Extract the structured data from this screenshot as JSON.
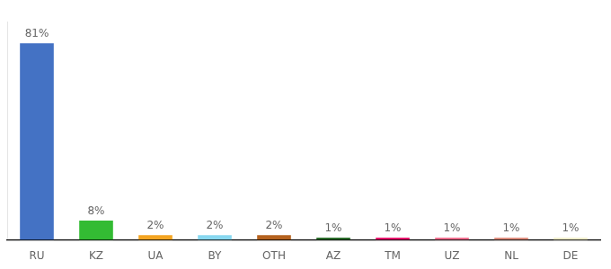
{
  "chart_data": {
    "type": "bar",
    "categories": [
      "RU",
      "KZ",
      "UA",
      "BY",
      "OTH",
      "AZ",
      "TM",
      "UZ",
      "NL",
      "DE"
    ],
    "values": [
      81,
      8,
      2,
      2,
      2,
      1,
      1,
      1,
      1,
      1
    ],
    "value_labels": [
      "81%",
      "8%",
      "2%",
      "2%",
      "2%",
      "1%",
      "1%",
      "1%",
      "1%",
      "1%"
    ],
    "colors": [
      "#4472c4",
      "#33bb33",
      "#f4a522",
      "#88d8f0",
      "#b5621e",
      "#2d6e2d",
      "#e8186e",
      "#f07090",
      "#e09080",
      "#f0eecc"
    ],
    "ylim": [
      0,
      90
    ],
    "data_labels": true,
    "tick_labels": "x",
    "grid": false
  }
}
